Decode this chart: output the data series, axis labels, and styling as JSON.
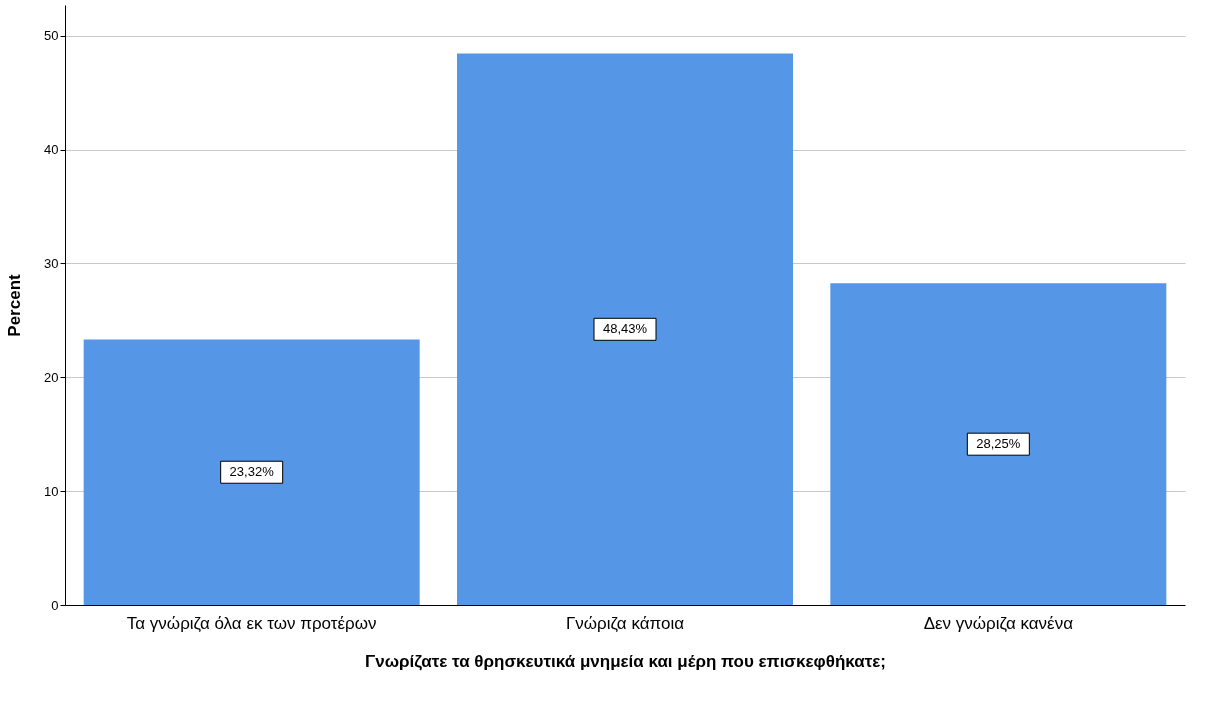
{
  "chart_data": {
    "type": "bar",
    "xlabel": "Γνωρίζατε τα θρησκευτικά μνημεία και μέρη που επισκεφθήκατε;",
    "ylabel": "Percent",
    "categories": [
      "Τα γνώριζα όλα εκ των προτέρων",
      "Γνώριζα κάποια",
      "Δεν γνώριζα κανένα"
    ],
    "values": [
      23.32,
      48.43,
      28.25
    ],
    "value_labels": [
      "23,32%",
      "48,43%",
      "28,25%"
    ],
    "color": "#5596e6",
    "ylim": [
      0,
      52.7
    ],
    "yticks": [
      0,
      10,
      20,
      30,
      40,
      50
    ],
    "grid": "y"
  }
}
